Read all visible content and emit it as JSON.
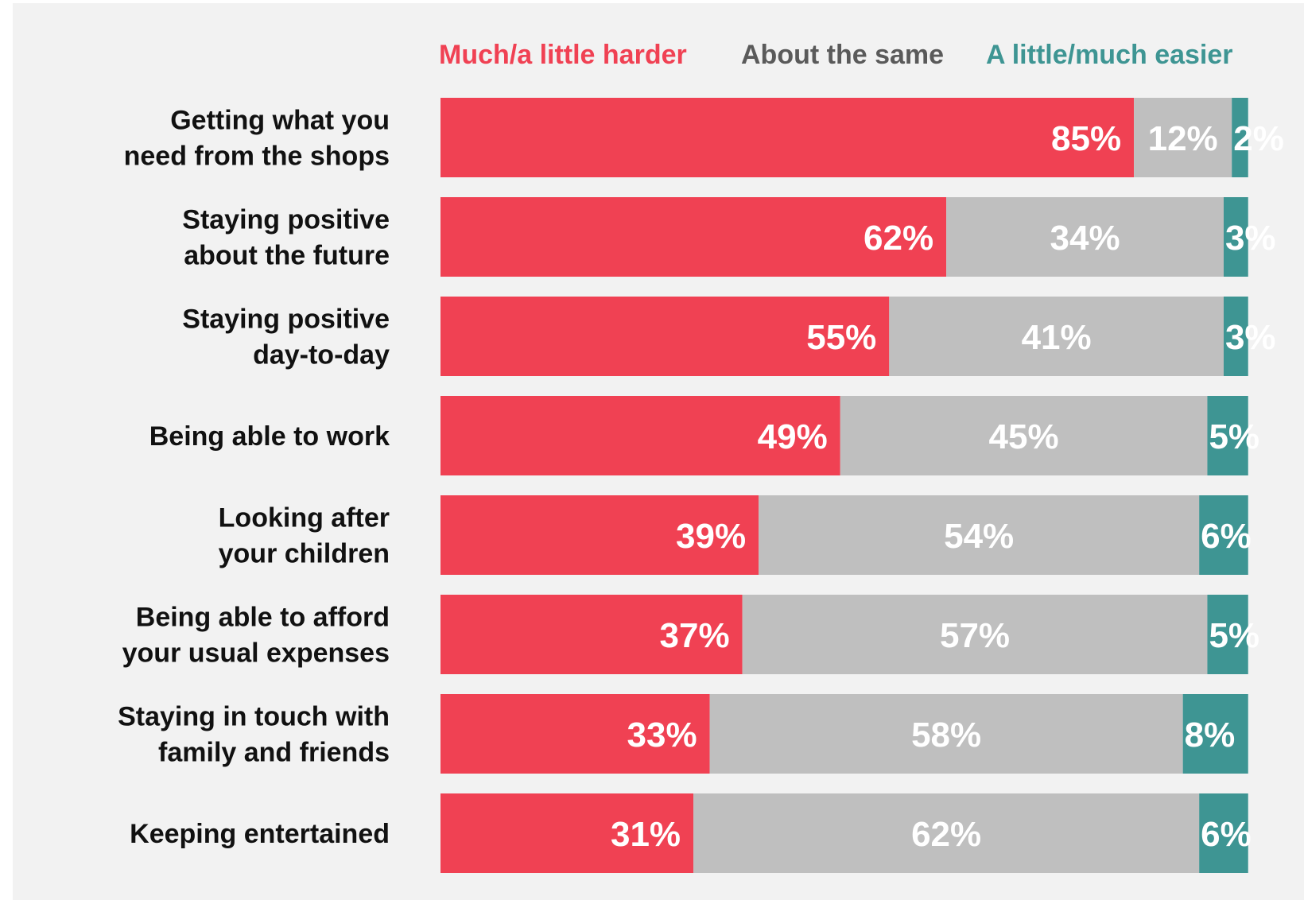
{
  "legend": [
    {
      "label": "Much/a little harder",
      "color": "#f04153"
    },
    {
      "label": "About the same",
      "color": "#5a5a5a"
    },
    {
      "label": "A little/much easier",
      "color": "#3e9593"
    }
  ],
  "chart_data": {
    "type": "bar",
    "orientation": "horizontal",
    "stacked": true,
    "legend_position": "top",
    "categories": [
      "Getting what you\nneed from the shops",
      "Staying positive\nabout the future",
      "Staying positive\nday-to-day",
      "Being able to work",
      "Looking after\nyour children",
      "Being able to afford\nyour usual expenses",
      "Staying in touch with\nfamily and friends",
      "Keeping entertained"
    ],
    "series": [
      {
        "name": "Much/a little harder",
        "color": "#f04153",
        "values": [
          85,
          62,
          55,
          49,
          39,
          37,
          33,
          31
        ],
        "labels": [
          "85%",
          "62%",
          "55%",
          "49%",
          "39%",
          "37%",
          "33%",
          "31%"
        ]
      },
      {
        "name": "About the same",
        "color": "#bfbfbf",
        "values": [
          12,
          34,
          41,
          45,
          54,
          57,
          58,
          62
        ],
        "labels": [
          "12%",
          "34%",
          "41%",
          "45%",
          "54%",
          "57%",
          "58%",
          "62%"
        ]
      },
      {
        "name": "A little/much easier",
        "color": "#3e9593",
        "values": [
          2,
          3,
          3,
          5,
          6,
          5,
          8,
          6
        ],
        "labels": [
          "2%",
          "3%",
          "3%",
          "5%",
          "6%",
          "5%",
          "8%",
          "6%"
        ]
      }
    ],
    "xlim": [
      0,
      100
    ],
    "grid": false
  }
}
